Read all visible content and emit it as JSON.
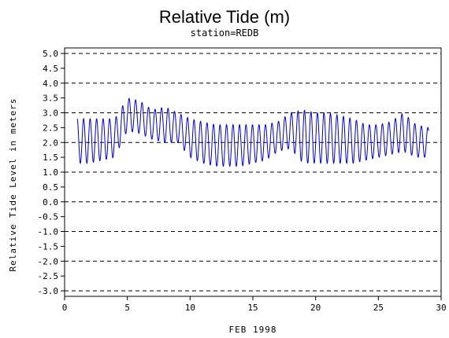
{
  "chart_data": {
    "type": "line",
    "title": "Relative Tide (m)",
    "subtitle": "station=REDB",
    "xlabel": "FEB 1998",
    "ylabel": "Relative Tide Level in meters",
    "xlim": [
      0,
      30
    ],
    "ylim": [
      -3.0,
      5.0
    ],
    "x_ticks": [
      "0",
      "5",
      "10",
      "15",
      "20",
      "25",
      "30"
    ],
    "y_ticks": [
      "-3.0",
      "-2.5",
      "-2.0",
      "-1.5",
      "-1.0",
      "-0.5",
      "0.0",
      "0.5",
      "1.0",
      "1.5",
      "2.0",
      "2.5",
      "3.0",
      "3.5",
      "4.0",
      "4.5",
      "5.0"
    ],
    "gridlines_y": [
      -3.0,
      -2.0,
      -1.0,
      0.0,
      1.0,
      2.0,
      3.0,
      4.0,
      5.0
    ],
    "grid": "horizontal dashed",
    "series": [
      {
        "color": "#0000cc",
        "period_days": 0.5175,
        "x_start": 1.0,
        "x_end": 29.0,
        "envelope": {
          "day": [
            1,
            2,
            3,
            4,
            5,
            6,
            7,
            8,
            9,
            10,
            11,
            12,
            13,
            14,
            15,
            16,
            17,
            18,
            19,
            20,
            21,
            22,
            23,
            24,
            25,
            26,
            27,
            28,
            29
          ],
          "high": [
            2.8,
            2.8,
            2.8,
            2.8,
            3.5,
            3.4,
            3.1,
            3.2,
            3.0,
            2.8,
            2.7,
            2.6,
            2.6,
            2.6,
            2.6,
            2.6,
            2.7,
            3.0,
            3.1,
            3.0,
            3.0,
            2.9,
            2.8,
            2.6,
            2.6,
            2.7,
            3.0,
            2.6,
            2.5
          ],
          "low": [
            1.3,
            1.3,
            1.4,
            1.5,
            2.4,
            2.3,
            2.1,
            2.0,
            2.0,
            1.5,
            1.3,
            1.2,
            1.2,
            1.2,
            1.3,
            1.4,
            1.7,
            1.8,
            1.3,
            1.3,
            1.3,
            1.3,
            1.3,
            1.4,
            1.5,
            1.6,
            1.7,
            1.5,
            1.5
          ]
        }
      }
    ]
  }
}
